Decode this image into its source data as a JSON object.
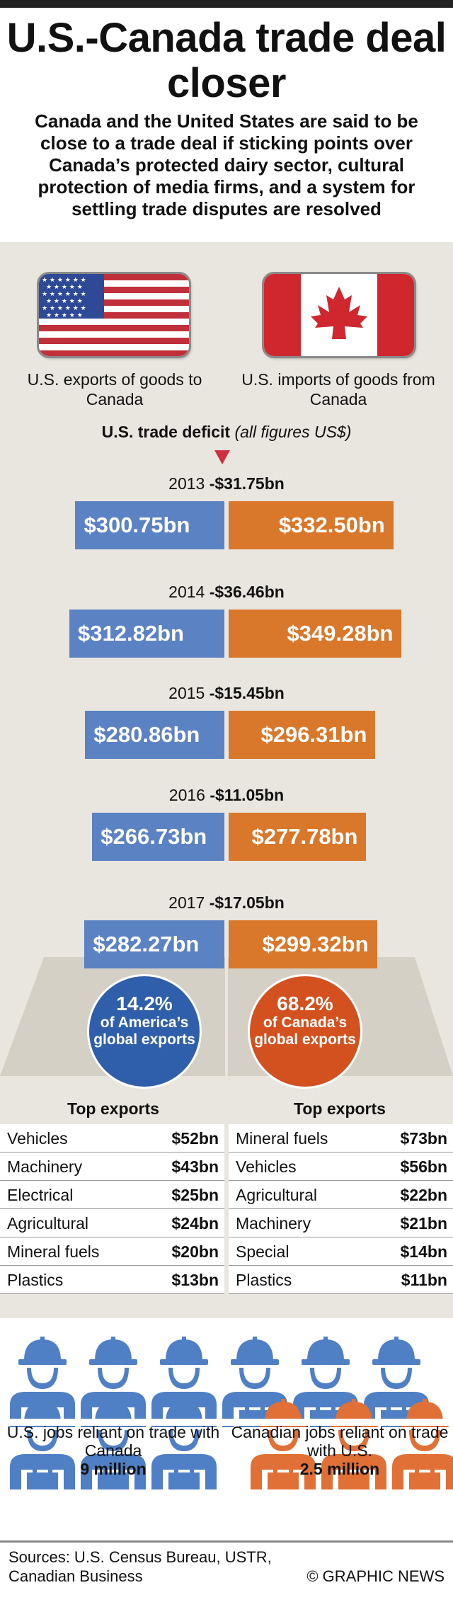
{
  "title": "U.S.-Canada trade deal closer",
  "subtitle": "Canada and the United States are said to be close to a trade deal if sticking points over Canada’s protected dairy sector, cultural protection of media firms, and a system for settling trade disputes are resolved",
  "captions": {
    "us_exports": "U.S. exports of goods to Canada",
    "us_imports": "U.S. imports of goods from Canada"
  },
  "deficit_heading": {
    "bold": "U.S. trade deficit",
    "italic": "(all figures US$)"
  },
  "colors": {
    "us": "#5b82c3",
    "ca": "#d9772a",
    "us_circle": "#2f5faa",
    "ca_circle": "#d2511f",
    "arrow": "#d03040"
  },
  "chart_data": {
    "type": "bar",
    "layout": "diverging",
    "title": "U.S. trade deficit (all figures US$)",
    "units": "US$ bn",
    "years": [
      {
        "year": "2013",
        "deficit": -31.75,
        "deficit_label": "-$31.75bn",
        "exports": 300.75,
        "exports_label": "$300.75bn",
        "imports": 332.5,
        "imports_label": "$332.50bn"
      },
      {
        "year": "2014",
        "deficit": -36.46,
        "deficit_label": "-$36.46bn",
        "exports": 312.82,
        "exports_label": "$312.82bn",
        "imports": 349.28,
        "imports_label": "$349.28bn"
      },
      {
        "year": "2015",
        "deficit": -15.45,
        "deficit_label": "-$15.45bn",
        "exports": 280.86,
        "exports_label": "$280.86bn",
        "imports": 296.31,
        "imports_label": "$296.31bn"
      },
      {
        "year": "2016",
        "deficit": -11.05,
        "deficit_label": "-$11.05bn",
        "exports": 266.73,
        "exports_label": "$266.73bn",
        "imports": 277.78,
        "imports_label": "$277.78bn"
      },
      {
        "year": "2017",
        "deficit": -17.05,
        "deficit_label": "-$17.05bn",
        "exports": 282.27,
        "exports_label": "$282.27bn",
        "imports": 299.32,
        "imports_label": "$299.32bn"
      }
    ],
    "share_us": {
      "pct": "14.2%",
      "text": "of America’s global exports"
    },
    "share_ca": {
      "pct": "68.2%",
      "text": "of Canada’s global exports"
    }
  },
  "top_exports": {
    "heading": "Top exports",
    "us": [
      {
        "name": "Vehicles",
        "value": "$52bn"
      },
      {
        "name": "Machinery",
        "value": "$43bn"
      },
      {
        "name": "Electrical",
        "value": "$25bn"
      },
      {
        "name": "Agricultural",
        "value": "$24bn"
      },
      {
        "name": "Mineral fuels",
        "value": "$20bn"
      },
      {
        "name": "Plastics",
        "value": "$13bn"
      }
    ],
    "ca": [
      {
        "name": "Mineral fuels",
        "value": "$73bn"
      },
      {
        "name": "Vehicles",
        "value": "$56bn"
      },
      {
        "name": "Agricultural",
        "value": "$22bn"
      },
      {
        "name": "Machinery",
        "value": "$21bn"
      },
      {
        "name": "Special",
        "value": "$14bn"
      },
      {
        "name": "Plastics",
        "value": "$11bn"
      }
    ]
  },
  "jobs": {
    "us_text": "U.S. jobs reliant on trade with Canada",
    "us_value": "9 million",
    "ca_text": "Canadian jobs reliant on trade with U.S.",
    "ca_value": "2.5 million"
  },
  "sources": "Sources: U.S. Census Bureau, USTR, Canadian Business",
  "credit": "© GRAPHIC NEWS"
}
